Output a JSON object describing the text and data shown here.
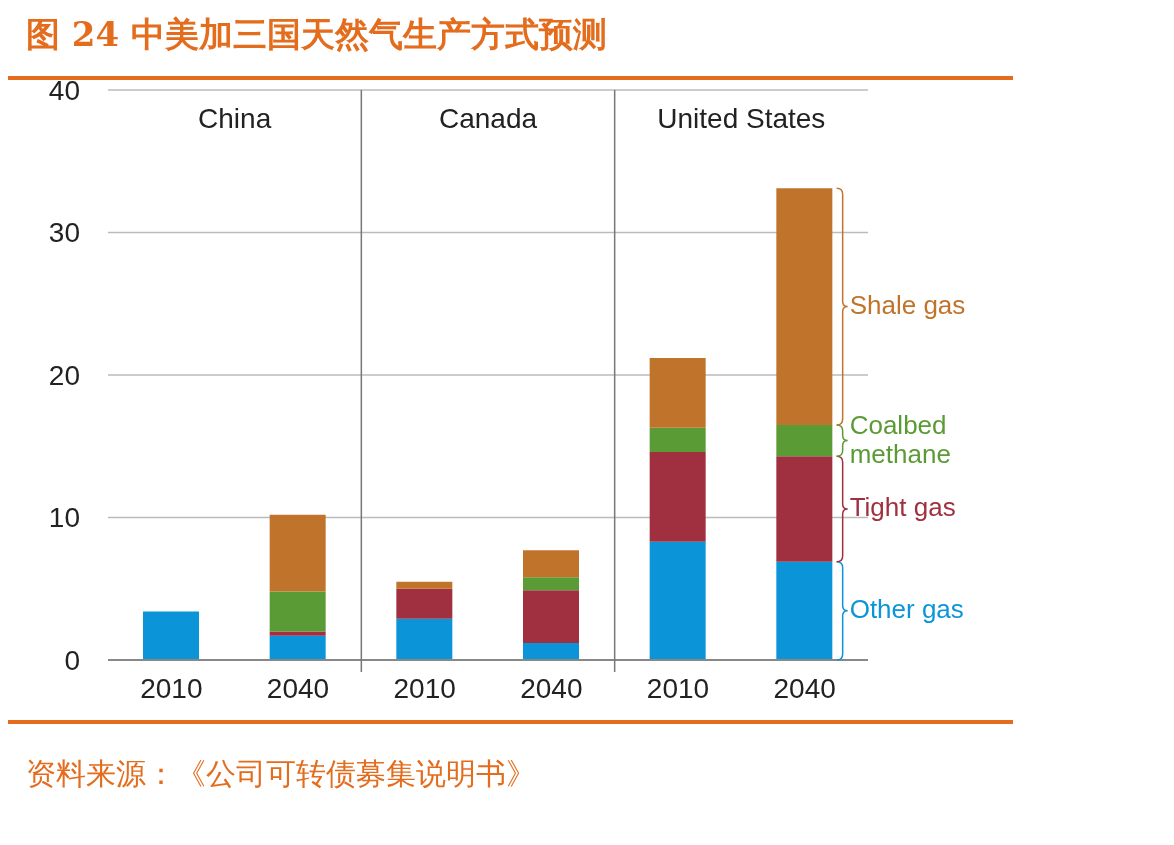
{
  "chart_data": {
    "type": "bar",
    "title": "图 24 中美加三国天然气生产方式预测",
    "stacked": true,
    "categories": [
      "2010",
      "2040",
      "2010",
      "2040",
      "2010",
      "2040"
    ],
    "series": [
      {
        "name": "Other gas",
        "color": "#0b95d8",
        "values": [
          3.4,
          1.7,
          2.9,
          1.2,
          8.3,
          6.9
        ]
      },
      {
        "name": "Tight gas",
        "color": "#a0303f",
        "values": [
          null,
          0.3,
          2.1,
          3.7,
          6.3,
          7.4
        ]
      },
      {
        "name": "Coalbed methane",
        "color": "#5b9b35",
        "values": [
          null,
          2.8,
          null,
          0.9,
          1.7,
          2.2
        ]
      },
      {
        "name": "Shale gas",
        "color": "#c0742b",
        "values": [
          null,
          5.4,
          0.5,
          1.9,
          4.9,
          16.6
        ]
      }
    ],
    "ylim": [
      0,
      40
    ],
    "yticks": [
      0,
      10,
      20,
      30,
      40
    ],
    "grid": "y",
    "legend": "right",
    "annotations": [
      "China",
      "Canada",
      "United States",
      "资料来源：《公司可转债募集说明书》"
    ]
  }
}
